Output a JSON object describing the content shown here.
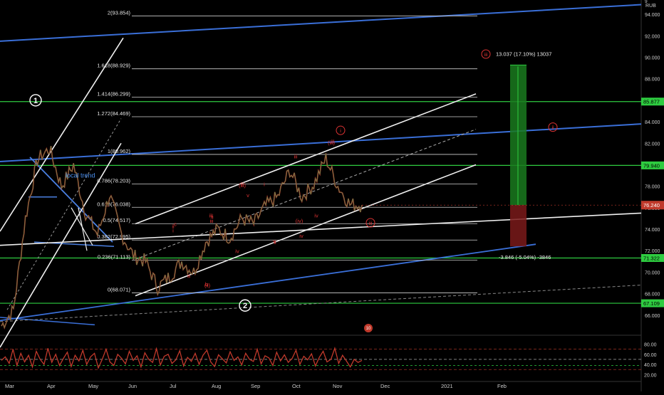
{
  "currency": "RUB",
  "chart_data": {
    "type": "line",
    "title": "",
    "ylim": [
      64.2,
      95.2
    ],
    "y_ticks": [
      "94.000",
      "92.000",
      "90.000",
      "88.000",
      "86.000",
      "84.000",
      "82.000",
      "80.000",
      "78.000",
      "76.000",
      "74.000",
      "72.000",
      "70.000",
      "68.000",
      "66.000"
    ],
    "x_ticks": [
      "Mar",
      "Apr",
      "May",
      "Jun",
      "Jul",
      "Aug",
      "Sep",
      "Oct",
      "Nov",
      "Dec",
      "2021",
      "Feb"
    ],
    "price_series": {
      "name": "",
      "points": [
        [
          "Mar",
          65.0
        ],
        [
          "early Mar",
          66.5
        ],
        [
          "mid Mar",
          75.0
        ],
        [
          "mid Mar",
          80.5
        ],
        [
          "late Mar",
          81.5
        ],
        [
          "Apr",
          78.0
        ],
        [
          "Apr",
          80.0
        ],
        [
          "mid Apr",
          75.5
        ],
        [
          "late Apr",
          73.5
        ],
        [
          "early May",
          77.2
        ],
        [
          "mid May",
          73.5
        ],
        [
          "late May",
          71.5
        ],
        [
          "Jun",
          71.0
        ],
        [
          "mid Jun",
          68.6
        ],
        [
          "late Jun",
          69.6
        ],
        [
          "Jul",
          71.0
        ],
        [
          "mid Jul",
          70.0
        ],
        [
          "late Jul",
          72.8
        ],
        [
          "Aug",
          74.0
        ],
        [
          "mid Aug",
          73.2
        ],
        [
          "late Aug",
          75.0
        ],
        [
          "Sep",
          74.5
        ],
        [
          "mid Sep",
          76.2
        ],
        [
          "late Sep",
          77.0
        ],
        [
          "Oct",
          79.5
        ],
        [
          "mid Oct",
          77.0
        ],
        [
          "late Oct",
          78.2
        ],
        [
          "Nov",
          80.6
        ],
        [
          "Nov",
          78.0
        ],
        [
          "mid Nov",
          76.3
        ],
        [
          "late Nov",
          76.24
        ]
      ]
    },
    "last_price": "76.240",
    "fibonacci_levels": [
      {
        "label": "2(93.854)",
        "value": 93.854
      },
      {
        "label": "1.618(88.929)",
        "value": 88.929
      },
      {
        "label": "1.414(86.299)",
        "value": 86.299
      },
      {
        "label": "1.272(84.469)",
        "value": 84.469
      },
      {
        "label": "1(80.962)",
        "value": 80.962
      },
      {
        "label": "0.786(78.203)",
        "value": 78.203
      },
      {
        "label": "0.618(76.038)",
        "value": 76.038
      },
      {
        "label": "0.5(74.517)",
        "value": 74.517
      },
      {
        "label": "0.382(72.995)",
        "value": 72.995
      },
      {
        "label": "0.236(71.113)",
        "value": 71.113
      },
      {
        "label": "0(68.071)",
        "value": 68.071
      }
    ],
    "horizontal_levels": [
      {
        "value": 85.877,
        "label": "85.877",
        "color": "#2ecc40"
      },
      {
        "value": 79.94,
        "label": "79.940",
        "color": "#2ecc40"
      },
      {
        "value": 71.322,
        "label": "71.322",
        "color": "#2ecc40"
      },
      {
        "value": 67.109,
        "label": "67.109",
        "color": "#2ecc40"
      }
    ],
    "position_tool": {
      "entry": 76.24,
      "target": 89.28,
      "stop": 72.4,
      "profit_label": "13.037 (17.10%) 13037",
      "loss_label": "-3.846 (-5.04%) -3846"
    },
    "annotations": {
      "trend_label": "local trend",
      "waves": [
        "1",
        "2"
      ],
      "sub_waves": [
        "iii",
        "iii",
        "iii",
        "i",
        "ii",
        "iv",
        "v",
        "i",
        "ii",
        "iii",
        "iv",
        "v",
        "a",
        "c",
        "b",
        "iii",
        "ii",
        "iv",
        "(iii)",
        "(iii)",
        "(iv)",
        "(ii)"
      ],
      "circled": [
        "iii",
        "i",
        "ii",
        "iii"
      ],
      "event_badge": "10"
    },
    "oscillator": {
      "y_ticks": [
        "80.00",
        "60.00",
        "40.00",
        "20.00"
      ],
      "ylim": [
        12,
        92
      ],
      "levels": [
        70,
        50,
        30
      ],
      "values": [
        48,
        55,
        42,
        70,
        38,
        62,
        45,
        58,
        35,
        66,
        50,
        40,
        72,
        44,
        60,
        38,
        52,
        64,
        36,
        58,
        47,
        68,
        40,
        55,
        62,
        33,
        50,
        70,
        45,
        38,
        60,
        52,
        41,
        66,
        48,
        57,
        35,
        63,
        50,
        44,
        71,
        39,
        56,
        60,
        42,
        49,
        67,
        37,
        54,
        46,
        62,
        40,
        58,
        68,
        45,
        36,
        59,
        51,
        43,
        65,
        48,
        55,
        39,
        62,
        50,
        46,
        70,
        41,
        57,
        53,
        38,
        64,
        47,
        59,
        44,
        52,
        68,
        40,
        56,
        49,
        61,
        37,
        54,
        66,
        45,
        50,
        72,
        42,
        58,
        47,
        35,
        50,
        44,
        48
      ]
    }
  }
}
